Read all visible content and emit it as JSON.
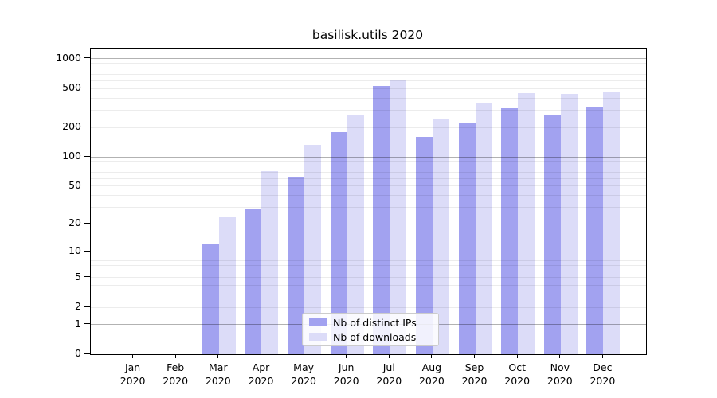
{
  "title": "basilisk.utils 2020",
  "chart_data": {
    "type": "bar",
    "title": "basilisk.utils 2020",
    "categories": [
      "Jan",
      "Feb",
      "Mar",
      "Apr",
      "May",
      "Jun",
      "Jul",
      "Aug",
      "Sep",
      "Oct",
      "Nov",
      "Dec"
    ],
    "year": "2020",
    "series": [
      {
        "name": "Nb of distinct IPs",
        "color": "#a2a2f0",
        "values": [
          0,
          0,
          12,
          29,
          62,
          179,
          530,
          160,
          221,
          315,
          272,
          327
        ]
      },
      {
        "name": "Nb of downloads",
        "color": "#dcdcf8",
        "values": [
          0,
          0,
          24,
          72,
          132,
          268,
          613,
          241,
          350,
          445,
          441,
          462
        ]
      }
    ],
    "xlabel": "",
    "ylabel": "",
    "yscale": "log1p",
    "ylim": [
      0,
      1270
    ],
    "y_tick_values": [
      0,
      1,
      2,
      5,
      10,
      20,
      50,
      100,
      200,
      500,
      1000
    ],
    "grid": "horizontal, minor light + major dark at powers of 10",
    "legend_position": "lower center"
  },
  "legend": {
    "items": [
      {
        "label": "Nb of distinct IPs",
        "color": "#a2a2f0"
      },
      {
        "label": "Nb of downloads",
        "color": "#dcdcf8"
      }
    ]
  }
}
